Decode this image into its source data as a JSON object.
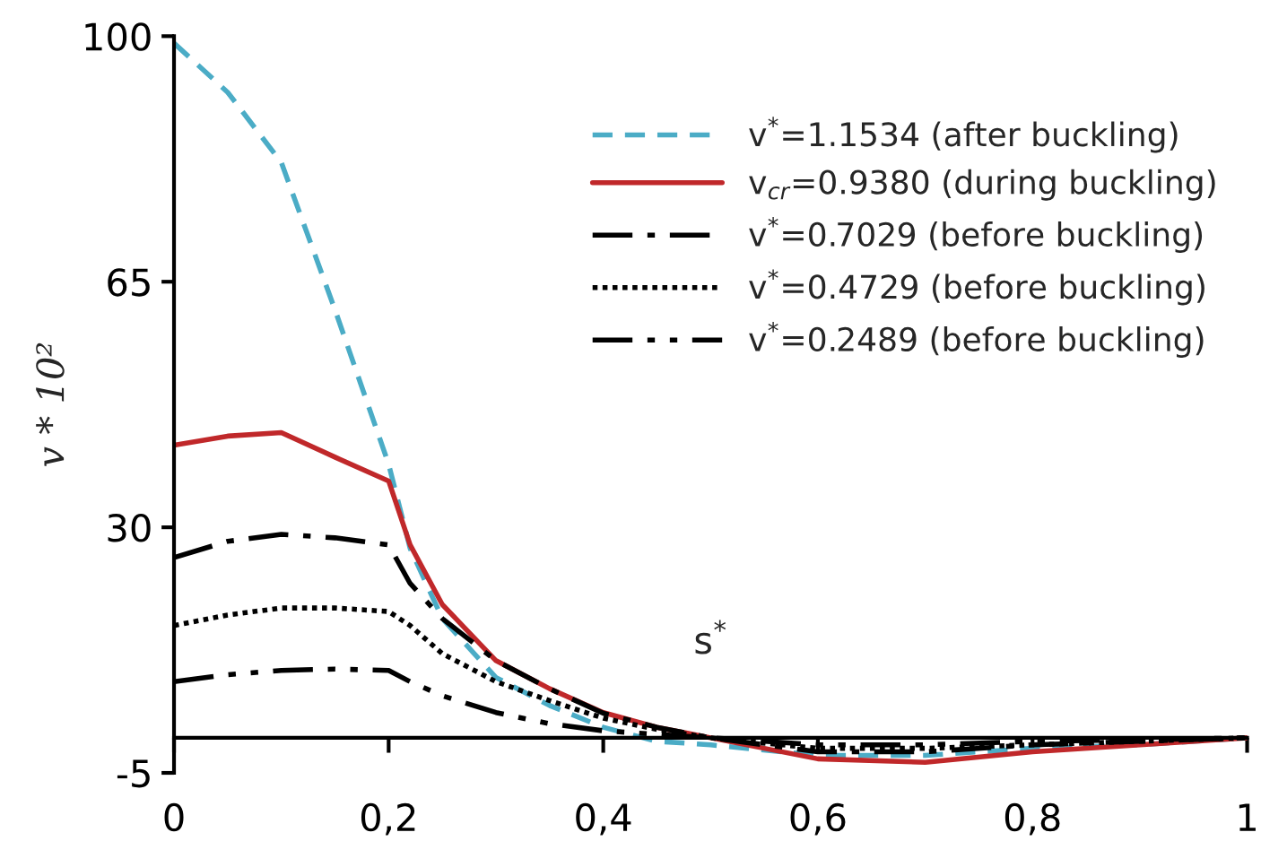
{
  "chart_data": {
    "type": "line",
    "xlabel": "s$^{*}$",
    "ylabel": "v * 10²",
    "x": [
      0,
      0.05,
      0.1,
      0.15,
      0.2,
      0.22,
      0.25,
      0.3,
      0.35,
      0.4,
      0.45,
      0.5,
      0.6,
      0.7,
      0.8,
      0.9,
      1
    ],
    "series": [
      {
        "name": "v$^{*}$=1.1534 (after buckling)",
        "color": "#4bacc6",
        "line_style": "dashed",
        "values": [
          99,
          92,
          82,
          61,
          39,
          27,
          17,
          8.6,
          4.6,
          1.5,
          -0.5,
          -1,
          -2.5,
          -2.5,
          -1.5,
          -1,
          0
        ]
      },
      {
        "name": "v$_{cr}$=0.9380 (during buckling)",
        "color": "#c0282a",
        "line_style": "solid",
        "values": [
          41.7,
          43,
          43.5,
          40,
          36.6,
          27.5,
          19,
          11,
          7,
          3.6,
          1.5,
          0,
          -3,
          -3.5,
          -2,
          -1,
          0
        ]
      },
      {
        "name": "v$^{*}$=0.7029 (before buckling)",
        "color": "#000000",
        "line_style": "dashdot",
        "values": [
          25.7,
          28,
          29,
          28.5,
          27.5,
          22,
          17,
          11,
          7,
          3.5,
          1.5,
          0,
          -2,
          -2,
          -1,
          -0.5,
          0
        ]
      },
      {
        "name": "v$^{*}$=0.4729 (before buckling)",
        "color": "#000000",
        "line_style": "dotted",
        "values": [
          16,
          17.5,
          18.5,
          18.5,
          18,
          16,
          12,
          8,
          5.3,
          2.8,
          1.2,
          0,
          -1.5,
          -1.5,
          -1,
          -0.5,
          0
        ]
      },
      {
        "name": "v$^{*}$=0.2489 (before buckling)",
        "color": "#000000",
        "line_style": "dashdotdot",
        "values": [
          8,
          9,
          9.6,
          9.8,
          9.6,
          8,
          6,
          3.6,
          2,
          1,
          0.5,
          0,
          -1,
          -1,
          -0.5,
          -0.3,
          0
        ]
      }
    ],
    "xlim": [
      0,
      1
    ],
    "xticks": [
      {
        "value": 0,
        "label": "0"
      },
      {
        "value": 0.2,
        "label": "0,2"
      },
      {
        "value": 0.4,
        "label": "0,4"
      },
      {
        "value": 0.6,
        "label": "0,6"
      },
      {
        "value": 0.8,
        "label": "0,8"
      },
      {
        "value": 1,
        "label": "1"
      }
    ],
    "ylim": [
      -5,
      100
    ],
    "yticks": [
      -5,
      30,
      65,
      100
    ],
    "grid": false,
    "legend": "top right",
    "marker": "none"
  }
}
